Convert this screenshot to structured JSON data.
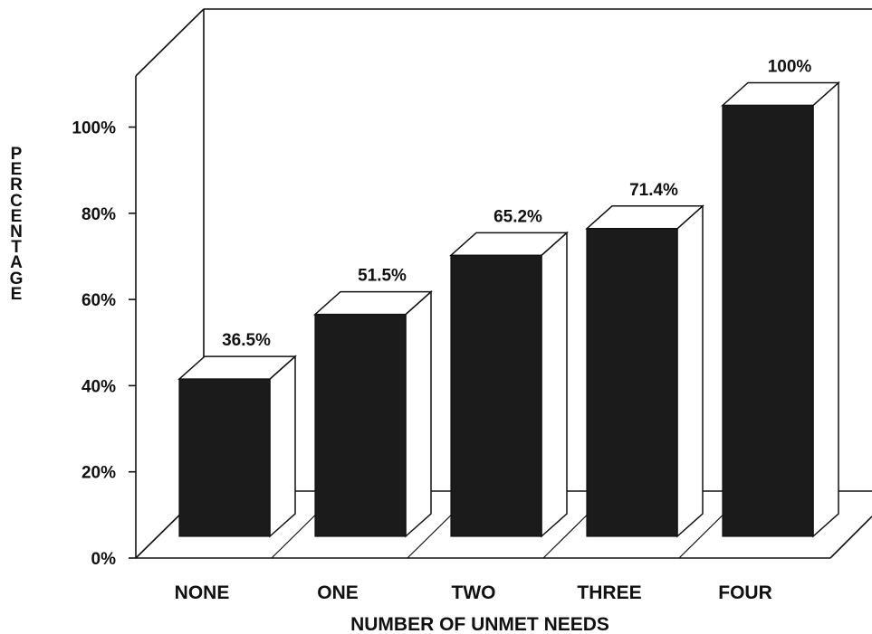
{
  "chart_data": {
    "type": "bar",
    "title": "",
    "xlabel": "NUMBER OF UNMET NEEDS",
    "ylabel": "PERCENTAGE",
    "categories": [
      "NONE",
      "ONE",
      "TWO",
      "THREE",
      "FOUR"
    ],
    "values": [
      36.5,
      51.5,
      65.2,
      71.4,
      100
    ],
    "value_labels": [
      "36.5%",
      "51.5%",
      "65.2%",
      "71.4%",
      "100%"
    ],
    "yticks": [
      "0%",
      "20%",
      "40%",
      "60%",
      "80%",
      "100%"
    ],
    "ylim": [
      0,
      100
    ],
    "grid": false,
    "style": "3d",
    "colors": {
      "bar_front": "#1b1b1b",
      "bar_side": "#ffffff",
      "line": "#111111"
    }
  }
}
